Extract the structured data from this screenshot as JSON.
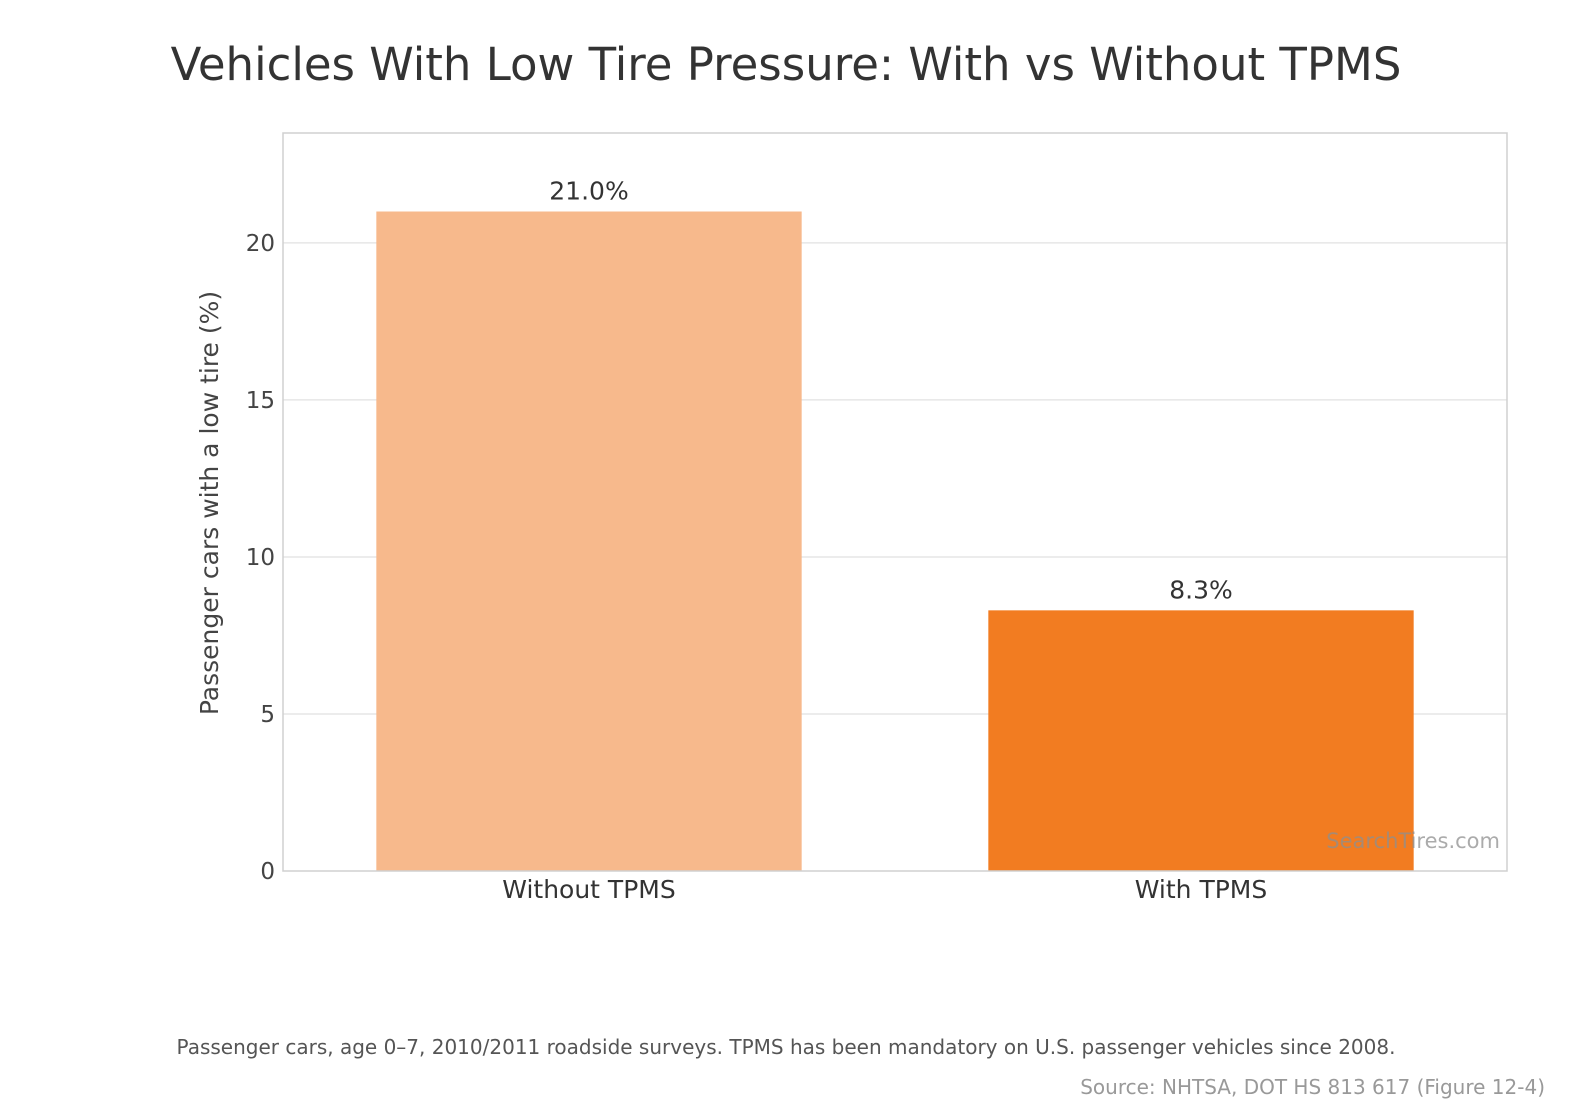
{
  "chart_data": {
    "type": "bar",
    "title": "Vehicles With Low Tire Pressure: With vs Without TPMS",
    "xlabel": "",
    "ylabel": "Passenger cars with a low tire (%)",
    "categories": [
      "Without TPMS",
      "With TPMS"
    ],
    "values": [
      21.0,
      8.3
    ],
    "value_labels": [
      "21.0%",
      "8.3%"
    ],
    "colors": [
      "#F7B98C",
      "#F27C21"
    ],
    "ylim": [
      0,
      23.5
    ],
    "yticks": [
      0,
      5,
      10,
      15,
      20
    ],
    "grid": true,
    "legend": "none"
  },
  "watermark": "SearchTires.com",
  "caption": "Passenger cars, age 0–7, 2010/2011 roadside surveys. TPMS has been mandatory on U.S. passenger vehicles since 2008.",
  "source": "Source: NHTSA, DOT HS 813 617 (Figure 12-4)",
  "style": {
    "gridline_color": "#E6E6E6",
    "frame_color": "#D0D0D0"
  }
}
